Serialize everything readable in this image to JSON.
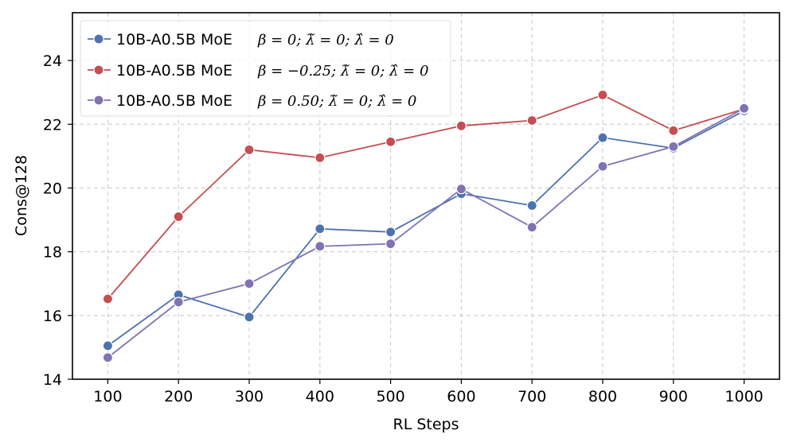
{
  "chart_data": {
    "type": "line",
    "xlabel": "RL Steps",
    "ylabel": "Cons@128",
    "x": [
      100,
      200,
      300,
      400,
      500,
      600,
      700,
      800,
      900,
      1000
    ],
    "xlim": [
      50,
      1050
    ],
    "ylim": [
      14,
      25.5
    ],
    "yticks": [
      14,
      16,
      18,
      20,
      22,
      24
    ],
    "grid": true,
    "legend_position": "top-left",
    "series": [
      {
        "name": "10B-A0.5B MoE",
        "math": "β = 0;  λ̃ = 0;  λ̂ = 0",
        "color": "#4c72b0",
        "values": [
          15.05,
          16.65,
          15.95,
          18.72,
          18.62,
          19.82,
          19.45,
          21.58,
          21.25,
          22.42
        ]
      },
      {
        "name": "10B-A0.5B MoE",
        "math": "β = −0.25;  λ̃ = 0;  λ̂ = 0",
        "color": "#c44e52",
        "values": [
          16.52,
          19.1,
          21.2,
          20.95,
          21.45,
          21.95,
          22.12,
          22.92,
          21.8,
          22.48
        ]
      },
      {
        "name": "10B-A0.5B MoE",
        "math": "β = 0.50;  λ̃ = 0;  λ̂ = 0",
        "color": "#8172b3",
        "values": [
          14.68,
          16.42,
          17.0,
          18.17,
          18.25,
          19.97,
          18.77,
          20.68,
          21.3,
          22.5
        ]
      }
    ]
  }
}
